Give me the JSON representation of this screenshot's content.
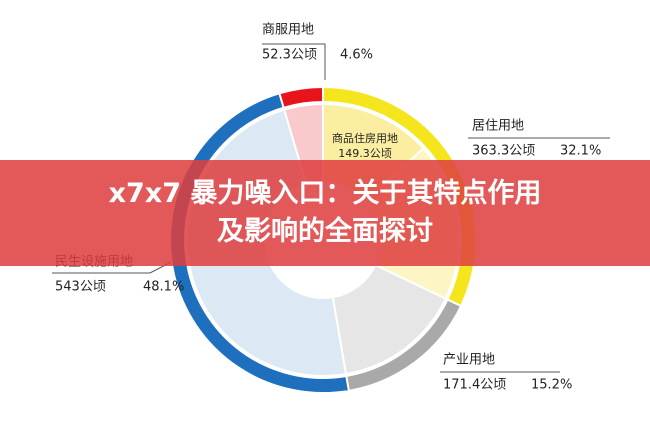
{
  "chart_data": {
    "type": "pie",
    "categories": [
      "居住用地",
      "产业用地",
      "民生设施用地",
      "商服用地"
    ],
    "values": [
      363.3,
      171.4,
      543,
      52.3
    ],
    "value_labels": [
      "363.3公顷",
      "171.4公顷",
      "543公顷",
      "52.3公顷"
    ],
    "percents": [
      32.1,
      15.2,
      48.1,
      4.6
    ],
    "percent_labels": [
      "32.1%",
      "15.2%",
      "48.1%",
      "4.6%"
    ],
    "colors": [
      "#f5e51c",
      "#a9a9a9",
      "#1f6fbf",
      "#e8141c"
    ],
    "inner": {
      "name": "商品住房用地",
      "value": 149.3,
      "value_label": "149.3公顷"
    }
  },
  "banner": {
    "lines": [
      "x7x7 暴力噪入口：关于其特点作用",
      "及影响的全面探讨"
    ]
  }
}
